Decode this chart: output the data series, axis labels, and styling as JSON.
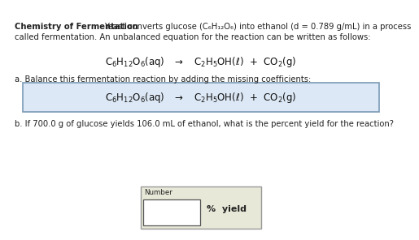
{
  "background_color": "#ffffff",
  "title_bold": "Chemistry of Fermentation",
  "title_regular1": " Yeast converts glucose (C",
  "title_regular2": "6",
  "title_regular3": "H",
  "title_regular4": "12",
  "title_regular5": "O",
  "title_regular6": "6",
  "title_regular7": ") into ethanol (d = 0.789 g/mL) in a process",
  "title_line2": "called fermentation. An unbalanced equation for the reaction can be written as follows:",
  "part_a_label": "a. Balance this fermentation reaction by adding the missing coefficients:",
  "part_b_label": "b. If 700.0 g of glucose yields 106.0 mL of ethanol, what is the percent yield for the reaction?",
  "number_label": "Number",
  "percent_yield_label": "%  yield",
  "text_color": "#222222",
  "eq_color": "#111111",
  "box_face": "#dce8f5",
  "box_edge": "#7a9ab5",
  "num_box_face": "#e8e8d8",
  "num_box_edge": "#999999",
  "inner_box_face": "#ffffff",
  "inner_box_edge": "#555555",
  "fontsize_body": 7.2,
  "fontsize_eq": 8.5,
  "fontsize_small": 6.2
}
